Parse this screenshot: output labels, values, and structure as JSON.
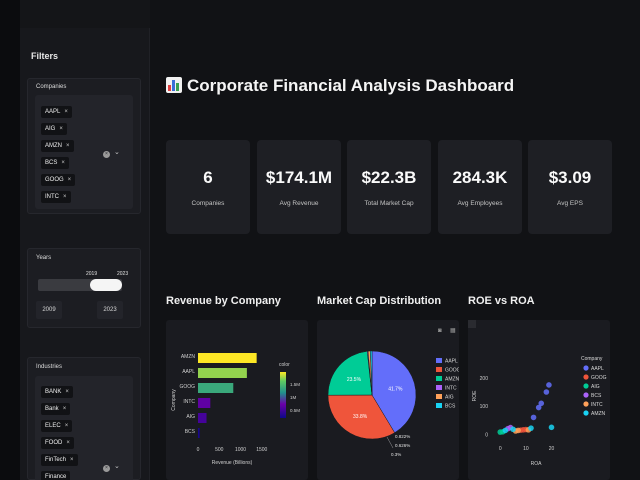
{
  "sidebar": {
    "title": "Filters",
    "companies": {
      "label": "Companies",
      "chips": [
        "AAPL",
        "AIG",
        "AMZN",
        "BCS",
        "GOOG",
        "INTC"
      ]
    },
    "years": {
      "label": "Years",
      "selected_low": "2019",
      "selected_high": "2023",
      "min": "2009",
      "max": "2023",
      "range_low": 0.67,
      "range_high": 1.0
    },
    "industries": {
      "label": "Industries",
      "chips": [
        "BANK",
        "Bank",
        "ELEC",
        "FOOD",
        "FinTech",
        "Finance"
      ]
    },
    "remove_glyph": "×",
    "clear_glyph": "×",
    "caret_glyph": "⌄"
  },
  "header": {
    "title": "Corporate Financial Analysis Dashboard"
  },
  "metrics": [
    {
      "value": "6",
      "label": "Companies"
    },
    {
      "value": "$174.1M",
      "label": "Avg Revenue"
    },
    {
      "value": "$22.3B",
      "label": "Total Market Cap"
    },
    {
      "value": "284.3K",
      "label": "Avg Employees"
    },
    {
      "value": "$3.09",
      "label": "Avg EPS"
    }
  ],
  "sections": {
    "revenue": "Revenue by Company",
    "market_cap": "Market Cap Distribution",
    "roe_roa": "ROE vs ROA"
  },
  "chart_data": [
    {
      "type": "bar",
      "orientation": "horizontal",
      "categories": [
        "AMZN",
        "AAPL",
        "GOOG",
        "INTC",
        "AIG",
        "BCS"
      ],
      "values": [
        1380,
        1150,
        830,
        290,
        200,
        40
      ],
      "xlabel": "Revenue (Billions)",
      "ylabel": "Company",
      "xticks": [
        "0",
        "500",
        "1000",
        "1500"
      ],
      "xlim": [
        0,
        1600
      ],
      "colorbar": {
        "title": "color",
        "ticks": [
          "1.5M",
          "1M",
          "0.5M"
        ]
      }
    },
    {
      "type": "pie",
      "labels": [
        "AAPL",
        "GOOG",
        "AMZN",
        "INTC",
        "AIG",
        "BCS"
      ],
      "values": [
        41.7,
        33.8,
        23.5,
        0.3,
        0.822,
        0.626
      ],
      "slice_labels": [
        "41.7%",
        "33.8%",
        "23.5%",
        "",
        "0.822%",
        "0.626%"
      ],
      "extra_label": "0.3%",
      "colors": [
        "#636efa",
        "#ef553b",
        "#00cc96",
        "#ab63fa",
        "#ffa15a",
        "#19d3f3"
      ],
      "legend": "right"
    },
    {
      "type": "scatter",
      "xlabel": "ROA",
      "ylabel": "ROE",
      "xticks": [
        "0",
        "10",
        "20"
      ],
      "yticks": [
        "0",
        "100",
        "200"
      ],
      "xlim": [
        -4,
        28
      ],
      "ylim": [
        -20,
        320
      ],
      "legend_title": "Company",
      "series": [
        {
          "name": "AAPL",
          "color": "#636efa",
          "points": [
            [
              13,
              60
            ],
            [
              15,
              95
            ],
            [
              16,
              110
            ],
            [
              18,
              150
            ],
            [
              19,
              175
            ]
          ]
        },
        {
          "name": "GOOG",
          "color": "#ef553b",
          "points": [
            [
              8,
              15
            ],
            [
              9,
              16
            ],
            [
              10,
              17
            ]
          ]
        },
        {
          "name": "AIG",
          "color": "#00cc96",
          "points": [
            [
              0,
              8
            ],
            [
              1,
              9
            ]
          ]
        },
        {
          "name": "BCS",
          "color": "#ab63fa",
          "points": [
            [
              3,
              20
            ],
            [
              4,
              24
            ]
          ]
        },
        {
          "name": "INTC",
          "color": "#ffa15a",
          "points": [
            [
              6,
              12
            ],
            [
              7,
              14
            ],
            [
              11,
              16
            ]
          ]
        },
        {
          "name": "AMZN",
          "color": "#19d3f3",
          "points": [
            [
              2,
              14
            ],
            [
              5,
              18
            ],
            [
              12,
              22
            ],
            [
              20,
              25
            ]
          ]
        }
      ]
    }
  ]
}
